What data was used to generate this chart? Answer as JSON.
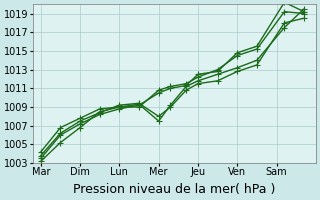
{
  "title": "",
  "xlabel": "Pression niveau de la mer( hPa )",
  "ylabel": "",
  "background_color": "#cce8e8",
  "plot_bg_color": "#dff2f2",
  "grid_color": "#aacccc",
  "line_color": "#1a6b1a",
  "ylim": [
    1003,
    1020
  ],
  "yticks": [
    1003,
    1005,
    1007,
    1009,
    1011,
    1013,
    1015,
    1017,
    1019
  ],
  "x_labels": [
    "Mar",
    "Dim",
    "Lun",
    "Mer",
    "Jeu",
    "Ven",
    "Sam"
  ],
  "x_tick_positions": [
    0,
    1,
    2,
    3,
    4,
    5,
    6
  ],
  "series": [
    [
      1003.2,
      1005.2,
      1006.8,
      1008.5,
      1009.0,
      1009.0,
      1010.8,
      1011.2,
      1011.5,
      1012.2,
      1013.0,
      1014.5,
      1015.2,
      1019.2,
      1019.0
    ],
    [
      1003.5,
      1006.0,
      1007.2,
      1008.2,
      1008.8,
      1009.2,
      1010.5,
      1011.0,
      1011.3,
      1012.5,
      1012.8,
      1014.8,
      1015.5,
      1020.2,
      1019.2
    ],
    [
      1003.8,
      1006.2,
      1007.5,
      1008.4,
      1009.2,
      1009.4,
      1008.0,
      1009.0,
      1010.8,
      1011.5,
      1011.8,
      1012.8,
      1013.5,
      1018.0,
      1018.5
    ],
    [
      1004.2,
      1006.8,
      1007.8,
      1008.8,
      1009.0,
      1009.3,
      1007.5,
      1009.2,
      1011.2,
      1011.8,
      1012.5,
      1013.2,
      1014.0,
      1017.5,
      1019.5
    ]
  ],
  "x_positions": [
    0,
    0.5,
    1.0,
    1.5,
    2.0,
    2.5,
    3.0,
    3.3,
    3.7,
    4.0,
    4.5,
    5.0,
    5.5,
    6.2,
    6.7
  ],
  "marker": "+",
  "marker_size": 4,
  "linewidth": 1.0,
  "xlabel_fontsize": 9,
  "tick_fontsize": 7
}
